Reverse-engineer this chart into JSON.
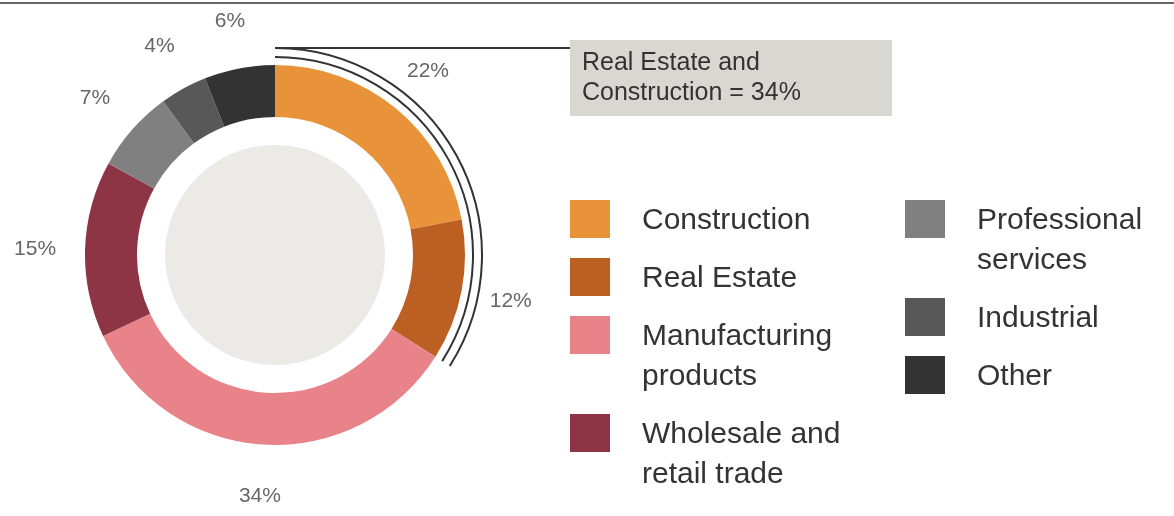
{
  "chart_data": {
    "type": "donut",
    "categories": [
      "Construction",
      "Real Estate",
      "Manufacturing products",
      "Wholesale and retail trade",
      "Professional services",
      "Industrial",
      "Other"
    ],
    "values": [
      22,
      12,
      34,
      15,
      7,
      4,
      6
    ],
    "colors": [
      "#e8923a",
      "#bc5f22",
      "#e8838a",
      "#8e3545",
      "#808080",
      "#585858",
      "#333333"
    ],
    "value_labels": [
      "22%",
      "12%",
      "34%",
      "15%",
      "7%",
      "4%",
      "6%"
    ],
    "legend": "right",
    "annotations": [
      "Real Estate and Construction = 34%"
    ]
  }
}
